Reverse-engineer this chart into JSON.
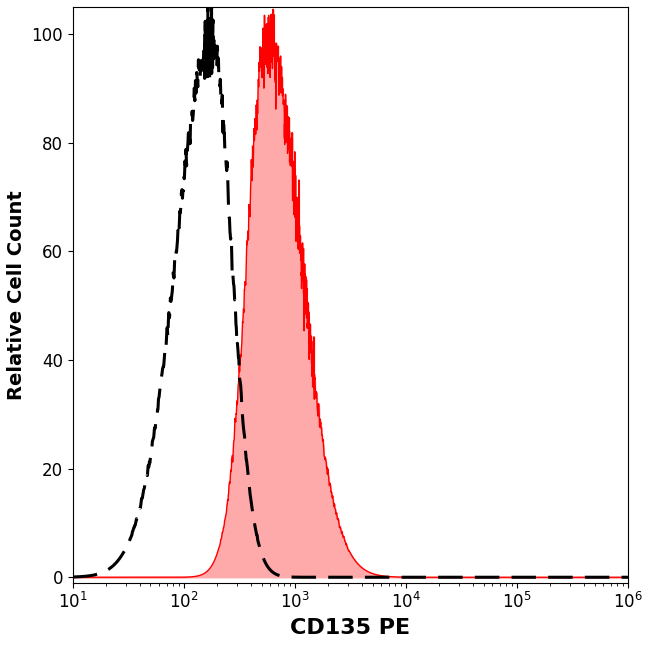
{
  "title": "",
  "xlabel": "CD135 PE",
  "ylabel": "Relative Cell Count",
  "xlim_log": [
    10,
    1000000
  ],
  "ylim": [
    -1,
    105
  ],
  "yticks": [
    0,
    20,
    40,
    60,
    80,
    100
  ],
  "background_color": "#ffffff",
  "plot_bg_color": "#ffffff",
  "isotype_color": "#000000",
  "antibody_color": "#ff0000",
  "antibody_fill_color": "#ffaaaa",
  "xlabel_fontsize": 16,
  "ylabel_fontsize": 14,
  "tick_fontsize": 12,
  "figsize": [
    6.5,
    6.45
  ],
  "dpi": 100
}
